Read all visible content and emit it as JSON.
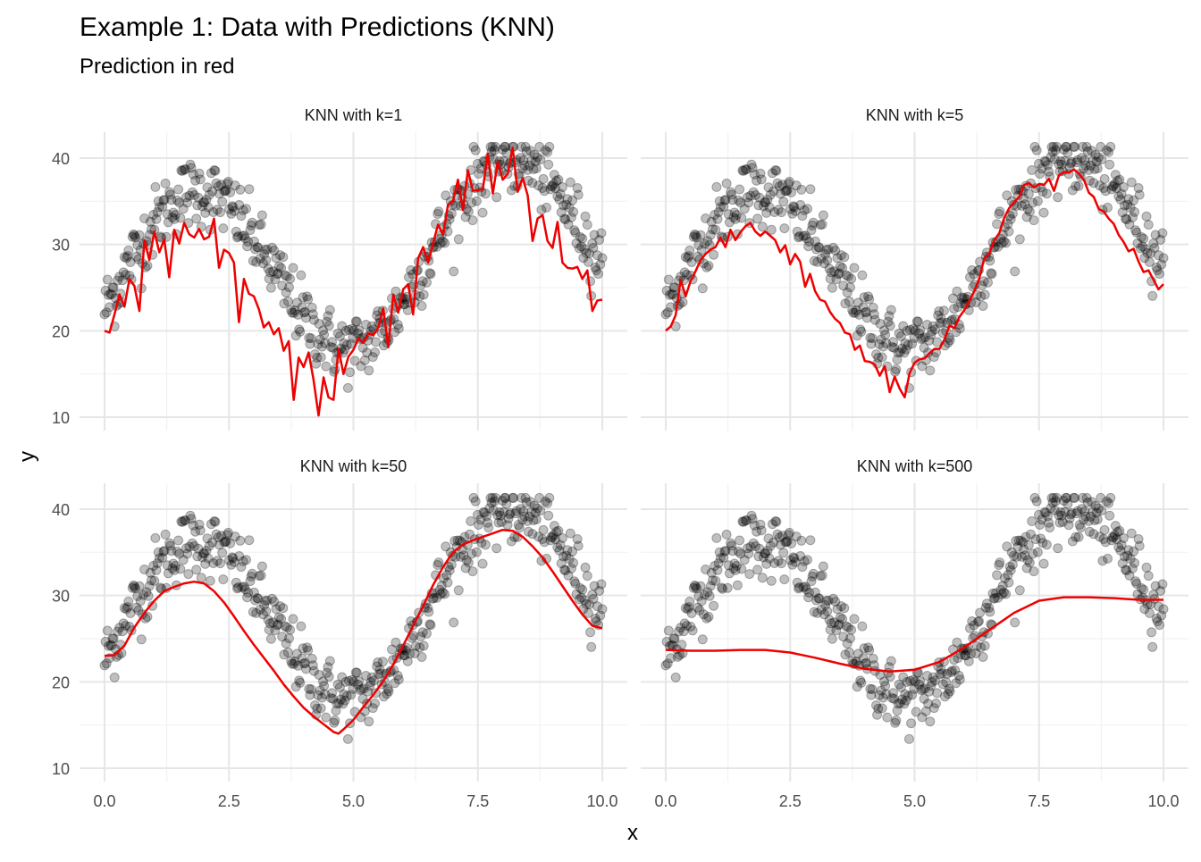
{
  "title": "Example 1: Data with Predictions (KNN)",
  "subtitle": "Prediction in red",
  "xlabel": "x",
  "ylabel": "y",
  "colors": {
    "points": "#000000",
    "prediction": "#ee0000",
    "grid_major": "#e6e6e6",
    "grid_minor": "#f2f2f2",
    "text": "#000000",
    "tick_text": "#4d4d4d"
  },
  "chart_data": [
    {
      "type": "scatter",
      "title": "KNN with k=1",
      "xlim": [
        0,
        10
      ],
      "ylim": [
        10,
        40
      ],
      "x_ticks": [
        0,
        2.5,
        5,
        7.5,
        10
      ],
      "x_tick_labels": [
        "0.0",
        "2.5",
        "5.0",
        "7.5",
        "10.0"
      ],
      "y_ticks": [
        10,
        20,
        30,
        40
      ],
      "y_tick_labels": [
        "10",
        "20",
        "30",
        "40"
      ],
      "grid": true,
      "prediction": {
        "x": [
          0.0,
          0.1,
          0.2,
          0.3,
          0.4,
          0.5,
          0.6,
          0.7,
          0.8,
          0.9,
          1.0,
          1.1,
          1.2,
          1.3,
          1.4,
          1.5,
          1.6,
          1.7,
          1.8,
          1.9,
          2.0,
          2.1,
          2.2,
          2.3,
          2.4,
          2.5,
          2.6,
          2.7,
          2.8,
          2.9,
          3.0,
          3.1,
          3.2,
          3.3,
          3.4,
          3.5,
          3.6,
          3.7,
          3.8,
          3.9,
          4.0,
          4.1,
          4.2,
          4.3,
          4.4,
          4.5,
          4.6,
          4.7,
          4.8,
          4.9,
          5.0,
          5.1,
          5.2,
          5.3,
          5.4,
          5.5,
          5.6,
          5.7,
          5.8,
          5.9,
          6.0,
          6.1,
          6.2,
          6.3,
          6.4,
          6.5,
          6.6,
          6.7,
          6.8,
          6.9,
          7.0,
          7.1,
          7.2,
          7.3,
          7.4,
          7.5,
          7.6,
          7.7,
          7.8,
          7.9,
          8.0,
          8.1,
          8.2,
          8.3,
          8.4,
          8.5,
          8.6,
          8.7,
          8.8,
          8.9,
          9.0,
          9.1,
          9.2,
          9.3,
          9.4,
          9.5,
          9.6,
          9.7,
          9.8,
          9.9,
          10.0
        ],
        "y": [
          20.0,
          19.8,
          21.9,
          24.2,
          22.8,
          26.0,
          25.2,
          22.3,
          30.5,
          28.2,
          31.5,
          29.1,
          30.6,
          26.2,
          31.7,
          30.1,
          32.5,
          31.2,
          30.8,
          31.8,
          30.6,
          30.9,
          33.0,
          27.3,
          29.4,
          29.0,
          27.9,
          21.0,
          26.0,
          24.3,
          24.0,
          22.5,
          20.4,
          21.0,
          19.6,
          20.3,
          17.7,
          18.8,
          12.0,
          16.9,
          15.8,
          17.5,
          14.3,
          10.2,
          14.6,
          12.3,
          12.0,
          17.9,
          15.0,
          17.0,
          17.8,
          19.1,
          18.6,
          19.7,
          19.5,
          20.4,
          22.6,
          18.1,
          24.2,
          22.1,
          24.8,
          25.4,
          21.9,
          28.4,
          29.7,
          27.9,
          30.1,
          32.3,
          31.1,
          34.6,
          35.0,
          37.5,
          34.0,
          38.6,
          36.2,
          36.3,
          36.4,
          40.5,
          35.9,
          39.6,
          37.5,
          38.2,
          41.2,
          36.1,
          37.7,
          35.7,
          30.4,
          33.0,
          33.4,
          30.4,
          29.6,
          32.6,
          27.9,
          27.3,
          27.2,
          27.4,
          26.0,
          27.0,
          22.3,
          23.5,
          23.6
        ]
      }
    },
    {
      "type": "scatter",
      "title": "KNN with k=5",
      "xlim": [
        0,
        10
      ],
      "ylim": [
        10,
        40
      ],
      "x_ticks": [
        0,
        2.5,
        5,
        7.5,
        10
      ],
      "x_tick_labels": [
        "0.0",
        "2.5",
        "5.0",
        "7.5",
        "10.0"
      ],
      "y_ticks": [
        10,
        20,
        30,
        40
      ],
      "y_tick_labels": [
        "10",
        "20",
        "30",
        "40"
      ],
      "grid": true,
      "prediction": {
        "x": [
          0.0,
          0.1,
          0.2,
          0.3,
          0.4,
          0.5,
          0.6,
          0.7,
          0.8,
          0.9,
          1.0,
          1.1,
          1.2,
          1.3,
          1.4,
          1.5,
          1.6,
          1.7,
          1.8,
          1.9,
          2.0,
          2.1,
          2.2,
          2.3,
          2.4,
          2.5,
          2.6,
          2.7,
          2.8,
          2.9,
          3.0,
          3.1,
          3.2,
          3.3,
          3.4,
          3.5,
          3.6,
          3.7,
          3.8,
          3.9,
          4.0,
          4.1,
          4.2,
          4.3,
          4.4,
          4.5,
          4.6,
          4.7,
          4.8,
          4.9,
          5.0,
          5.1,
          5.2,
          5.3,
          5.4,
          5.5,
          5.6,
          5.7,
          5.8,
          5.9,
          6.0,
          6.1,
          6.2,
          6.3,
          6.4,
          6.5,
          6.6,
          6.7,
          6.8,
          6.9,
          7.0,
          7.1,
          7.2,
          7.3,
          7.4,
          7.5,
          7.6,
          7.7,
          7.8,
          7.9,
          8.0,
          8.1,
          8.2,
          8.3,
          8.4,
          8.5,
          8.6,
          8.7,
          8.8,
          8.9,
          9.0,
          9.1,
          9.2,
          9.3,
          9.4,
          9.5,
          9.6,
          9.7,
          9.8,
          9.9,
          10.0
        ],
        "y": [
          20.0,
          20.5,
          21.8,
          25.9,
          24.0,
          25.8,
          26.9,
          28.2,
          28.9,
          29.4,
          29.7,
          30.8,
          29.7,
          31.7,
          30.5,
          31.4,
          32.1,
          32.5,
          31.5,
          31.0,
          31.5,
          31.0,
          30.5,
          29.1,
          29.9,
          27.7,
          28.9,
          28.0,
          25.1,
          26.6,
          24.6,
          23.6,
          23.4,
          22.2,
          21.4,
          20.9,
          19.8,
          19.6,
          17.8,
          18.3,
          16.5,
          16.4,
          16.1,
          14.8,
          15.9,
          12.9,
          14.7,
          13.3,
          12.3,
          15.1,
          16.3,
          16.7,
          16.8,
          17.4,
          17.9,
          17.9,
          19.0,
          20.6,
          20.3,
          21.6,
          22.4,
          23.5,
          24.6,
          26.1,
          28.4,
          28.9,
          30.5,
          31.3,
          33.1,
          34.2,
          34.9,
          35.5,
          36.9,
          37.1,
          36.6,
          37.0,
          36.9,
          37.6,
          36.2,
          38.0,
          38.4,
          38.3,
          38.7,
          38.2,
          37.5,
          36.0,
          35.5,
          34.1,
          33.8,
          33.0,
          32.4,
          31.1,
          30.3,
          29.2,
          29.5,
          28.0,
          26.8,
          27.0,
          25.9,
          24.8,
          25.4
        ]
      }
    },
    {
      "type": "scatter",
      "title": "KNN with k=50",
      "xlim": [
        0,
        10
      ],
      "ylim": [
        10,
        40
      ],
      "x_ticks": [
        0,
        2.5,
        5,
        7.5,
        10
      ],
      "x_tick_labels": [
        "0.0",
        "2.5",
        "5.0",
        "7.5",
        "10.0"
      ],
      "y_ticks": [
        10,
        20,
        30,
        40
      ],
      "y_tick_labels": [
        "10",
        "20",
        "30",
        "40"
      ],
      "grid": true,
      "prediction": {
        "x": [
          0.0,
          0.2,
          0.4,
          0.6,
          0.8,
          1.0,
          1.2,
          1.4,
          1.6,
          1.8,
          2.0,
          2.2,
          2.4,
          2.6,
          2.8,
          3.0,
          3.2,
          3.4,
          3.6,
          3.8,
          4.0,
          4.2,
          4.4,
          4.6,
          4.7,
          4.8,
          5.0,
          5.2,
          5.4,
          5.6,
          5.8,
          6.0,
          6.2,
          6.4,
          6.6,
          6.8,
          7.0,
          7.2,
          7.4,
          7.6,
          7.8,
          8.0,
          8.2,
          8.4,
          8.6,
          8.8,
          9.0,
          9.2,
          9.4,
          9.6,
          9.8,
          10.0
        ],
        "y": [
          23.0,
          23.1,
          24.2,
          26.3,
          28.0,
          29.4,
          30.5,
          31.0,
          31.4,
          31.6,
          31.4,
          30.5,
          29.2,
          27.6,
          25.9,
          24.3,
          22.8,
          21.3,
          19.7,
          18.3,
          17.0,
          16.0,
          15.1,
          14.2,
          14.0,
          14.5,
          15.6,
          17.1,
          18.5,
          20.1,
          22.0,
          24.2,
          26.5,
          28.8,
          31.2,
          33.3,
          35.0,
          35.9,
          36.4,
          36.8,
          37.2,
          37.6,
          37.5,
          36.8,
          35.7,
          34.4,
          32.8,
          31.1,
          29.4,
          27.8,
          26.5,
          26.2
        ]
      }
    },
    {
      "type": "scatter",
      "title": "KNN with k=500",
      "xlim": [
        0,
        10
      ],
      "ylim": [
        10,
        40
      ],
      "x_ticks": [
        0,
        2.5,
        5,
        7.5,
        10
      ],
      "x_tick_labels": [
        "0.0",
        "2.5",
        "5.0",
        "7.5",
        "10.0"
      ],
      "y_ticks": [
        10,
        20,
        30,
        40
      ],
      "y_tick_labels": [
        "10",
        "20",
        "30",
        "40"
      ],
      "grid": true,
      "prediction": {
        "x": [
          0.0,
          0.5,
          1.0,
          1.5,
          2.0,
          2.5,
          3.0,
          3.5,
          4.0,
          4.5,
          5.0,
          5.5,
          6.0,
          6.5,
          7.0,
          7.5,
          8.0,
          8.5,
          9.0,
          9.5,
          10.0
        ],
        "y": [
          23.7,
          23.6,
          23.6,
          23.7,
          23.7,
          23.4,
          22.8,
          22.1,
          21.5,
          21.2,
          21.4,
          22.3,
          24.0,
          26.0,
          28.0,
          29.4,
          29.8,
          29.8,
          29.7,
          29.5,
          29.5
        ]
      }
    }
  ]
}
